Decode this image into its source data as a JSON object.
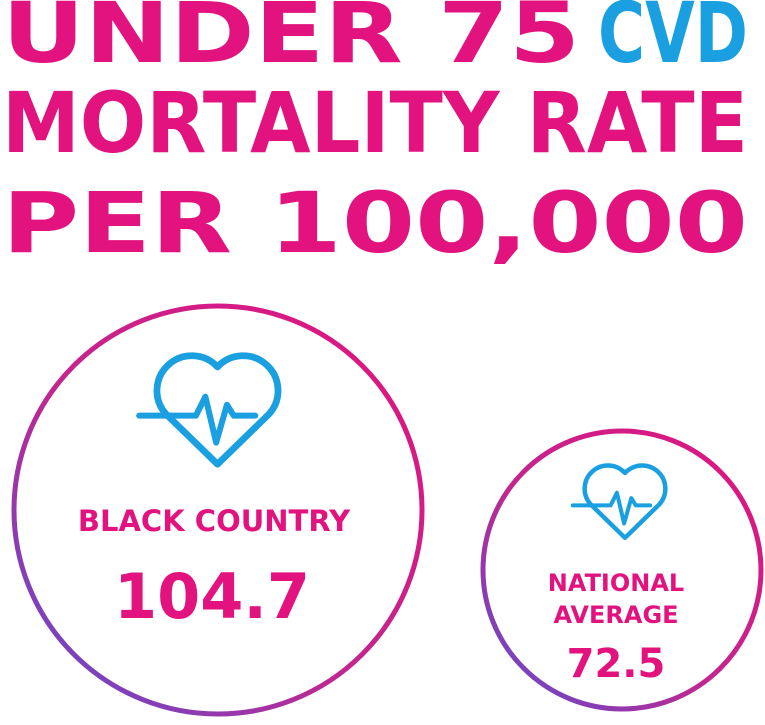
{
  "title": {
    "line1": "UNDER 75",
    "highlight": "CVD",
    "line2": "MORTALITY RATE",
    "line3": "PER 100,000"
  },
  "items": [
    {
      "label": [
        "BLACK COUNTRY"
      ],
      "value": 104.7
    },
    {
      "label": [
        "NATIONAL",
        "AVERAGE"
      ],
      "value": 72.5
    }
  ]
}
